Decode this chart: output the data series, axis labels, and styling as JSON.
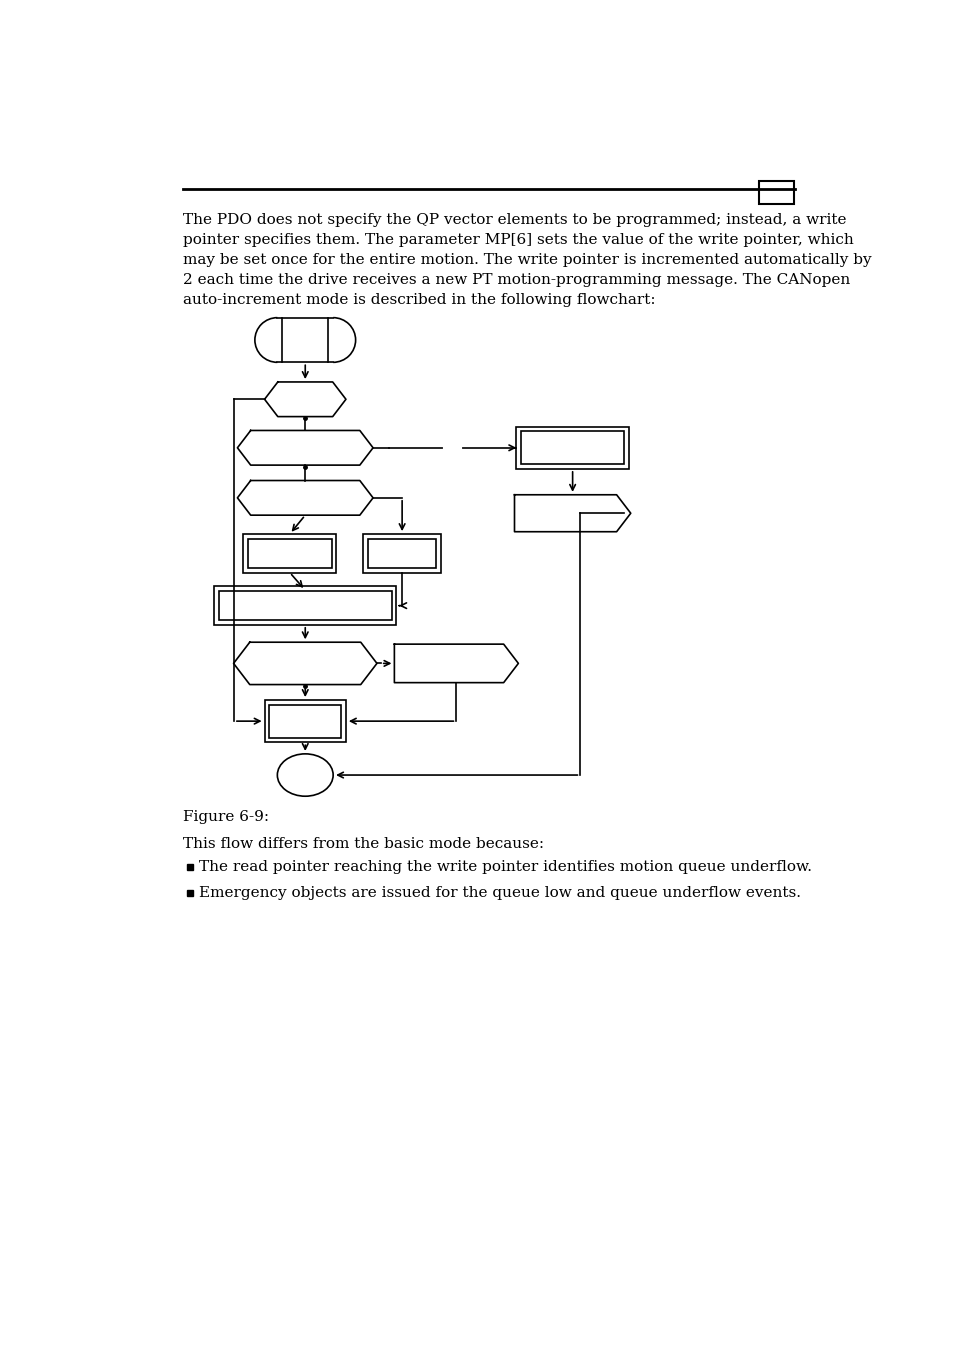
{
  "bg_color": "#ffffff",
  "line_color": "#000000",
  "text_intro": "The PDO does not specify the QP vector elements to be programmed; instead, a write\npointer specifies them. The parameter MP[6] sets the value of the write pointer, which\nmay be set once for the entire motion. The write pointer is incremented automatically by\n2 each time the drive receives a new PT motion-programming message. The CANopen\nauto-increment mode is described in the following flowchart:",
  "figure_label": "Figure 6-9:",
  "text_body1": "This flow differs from the basic mode because:",
  "bullet1": "The read pointer reaching the write pointer identifies motion queue underflow.",
  "bullet2": "Emergency objects are issued for the queue low and queue underflow events.",
  "font_size_intro": 11.0,
  "font_size_body": 11.0,
  "font_size_fig": 11.0
}
